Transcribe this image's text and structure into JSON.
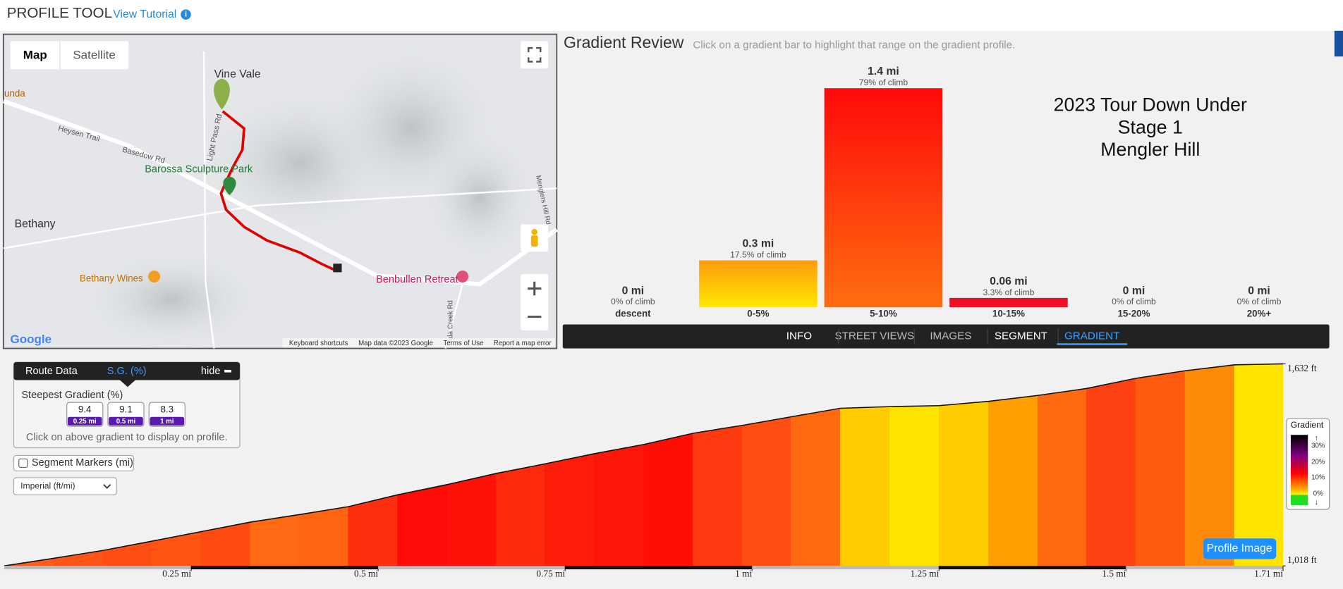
{
  "header": {
    "title": "PROFILE TOOL",
    "link": "View Tutorial"
  },
  "map": {
    "buttons": [
      "Map",
      "Satellite"
    ],
    "labels": {
      "vine_vale": "Vine Vale",
      "unda": "unda",
      "heysen_trail": "Heysen Trail",
      "basedow_rd": "Basedow Rd",
      "light_pass_rd": "Light Pass Rd",
      "sculpture_park": "Barossa Sculpture Park",
      "bethany": "Bethany",
      "bethany_wines": "Bethany Wines",
      "benbullen": "Benbullen Retreat",
      "creek_rd": "nda Creek Rd",
      "mengler_rd": "Menglers Hill Rd"
    },
    "footer": [
      "Keyboard shortcuts",
      "Map data ©2023 Google",
      "Terms of Use",
      "Report a map error"
    ],
    "logo": "Google"
  },
  "chart_data": [
    {
      "type": "bar",
      "title": "Gradient Review",
      "subtitle": "Click on a gradient bar to highlight that range on the gradient profile.",
      "categories": [
        "descent",
        "0-5%",
        "5-10%",
        "10-15%",
        "15-20%",
        "20%+"
      ],
      "values": [
        0,
        0.3,
        1.4,
        0.06,
        0,
        0
      ],
      "value_labels": [
        "0 mi",
        "0.3 mi",
        "1.4 mi",
        "0.06 mi",
        "0 mi",
        "0 mi"
      ],
      "climb_labels": [
        "0% of climb",
        "17.5% of climb",
        "79% of climb",
        "3.3% of climb",
        "0% of climb",
        "0% of climb"
      ]
    },
    {
      "type": "area",
      "x": [
        0,
        0.066,
        0.132,
        0.197,
        0.263,
        0.329,
        0.395,
        0.46,
        0.526,
        0.592,
        0.658,
        0.723,
        0.789,
        0.855,
        0.921,
        0.987,
        1.052,
        1.118,
        1.184,
        1.25,
        1.316,
        1.382,
        1.447,
        1.513,
        1.579,
        1.645,
        1.71
      ],
      "values": [
        1018,
        1041,
        1065,
        1093,
        1122,
        1151,
        1174,
        1198,
        1234,
        1265,
        1299,
        1328,
        1359,
        1387,
        1421,
        1445,
        1471,
        1497,
        1502,
        1505,
        1518,
        1536,
        1557,
        1588,
        1611,
        1629,
        1632
      ],
      "segment_colors": [
        "#ff5c1c",
        "#ff5418",
        "#ff4e14",
        "#ff5412",
        "#ff4a10",
        "#ff6a12",
        "#ff6410",
        "#ff2e10",
        "#ff0c08",
        "#ff1008",
        "#ff2a0e",
        "#ff1c0a",
        "#ff160a",
        "#ff0e08",
        "#ff3a10",
        "#ff4e12",
        "#ff6a10",
        "#ffcc00",
        "#ffe400",
        "#ffcc00",
        "#ff9e00",
        "#ff6a10",
        "#ff4212",
        "#ff5a10",
        "#ff8a08",
        "#ffe400"
      ],
      "xlim": [
        0,
        1.71
      ],
      "ylim": [
        1018,
        1632
      ],
      "xticks": [
        {
          "value": 0.25,
          "label": "0.25 mi"
        },
        {
          "value": 0.5,
          "label": "0.5 mi"
        },
        {
          "value": 0.75,
          "label": "0.75 mi"
        },
        {
          "value": 1,
          "label": "1 mi"
        },
        {
          "value": 1.25,
          "label": "1.25 mi"
        },
        {
          "value": 1.5,
          "label": "1.5 mi"
        },
        {
          "value": 1.71,
          "label": "1.71 mi"
        }
      ],
      "yticks": [
        {
          "value": 1018,
          "label": "1,018 ft"
        },
        {
          "value": 1632,
          "label": "1,632 ft"
        }
      ]
    }
  ],
  "event": [
    "2023 Tour Down Under",
    "Stage 1",
    "Mengler Hill"
  ],
  "tabs": [
    "INFO",
    "STREET VIEWS",
    "IMAGES",
    "SEGMENT",
    "GRADIENT"
  ],
  "route_panel": {
    "tabs": [
      "Route Data",
      "S.G. (%)"
    ],
    "hide": "hide",
    "heading": "Steepest Gradient (%)",
    "boxes": [
      {
        "value": 9.4,
        "distance": "0.25 mi"
      },
      {
        "value": 9.1,
        "distance": "0.5 mi"
      },
      {
        "value": 8.3,
        "distance": "1 mi"
      }
    ],
    "note": "Click on above gradient to display on profile.",
    "segment_markers": "Segment Markers (mi)",
    "units": "Imperial (ft/mi)"
  },
  "legend": {
    "title": "Gradient",
    "labels": [
      "30%",
      "20%",
      "10%",
      "0%"
    ]
  },
  "button": "Profile Image"
}
